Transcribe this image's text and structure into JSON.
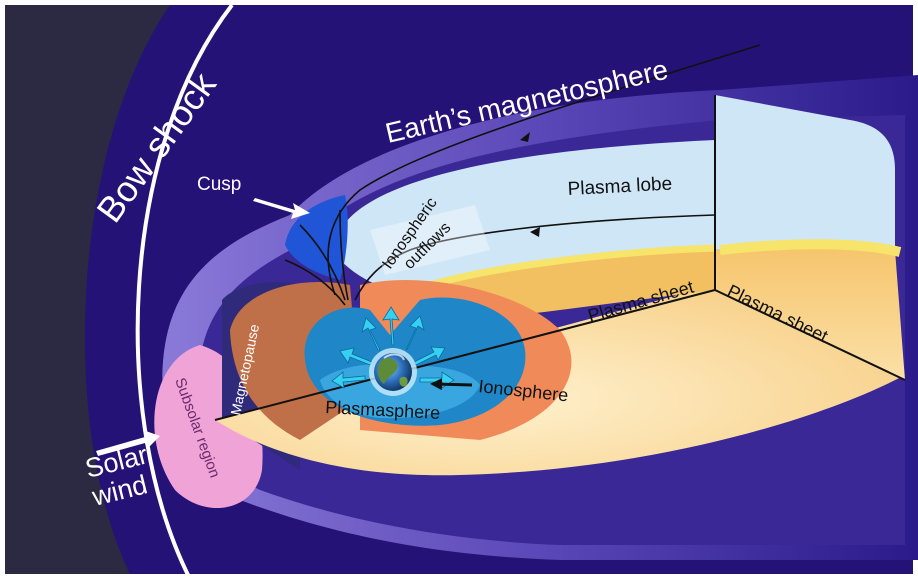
{
  "labels": {
    "bow_shock": "Bow shock",
    "magnetosphere": "Earth’s magnetosphere",
    "cusp": "Cusp",
    "plasma_lobe": "Plasma lobe",
    "ionospheric_1": "Ionospheric",
    "ionospheric_2": "outflows",
    "plasma_sheet_inner": "Plasma sheet",
    "plasma_sheet_face": "Plasma sheet",
    "magnetopause": "Magnetopause",
    "subsolar": "Subsolar region",
    "ionosphere": "Ionosphere",
    "plasmasphere": "Plasmasphere",
    "solar_1": "Solar",
    "solar_2": "wind"
  },
  "colors": {
    "space": "#2c2942",
    "sheath": "#241277",
    "magnetosphere_shell": "#4a3aa8",
    "lobe": "#cfe6f6",
    "plasma_sheet": "#f2c060",
    "plasmasphere": "#1f86c8",
    "cusp": "#1f55d6",
    "subsolar": "#f0a3d6",
    "outer_zone": "#f08a58"
  },
  "icons": [
    "earth-icon",
    "outflow-arrow-icon"
  ]
}
